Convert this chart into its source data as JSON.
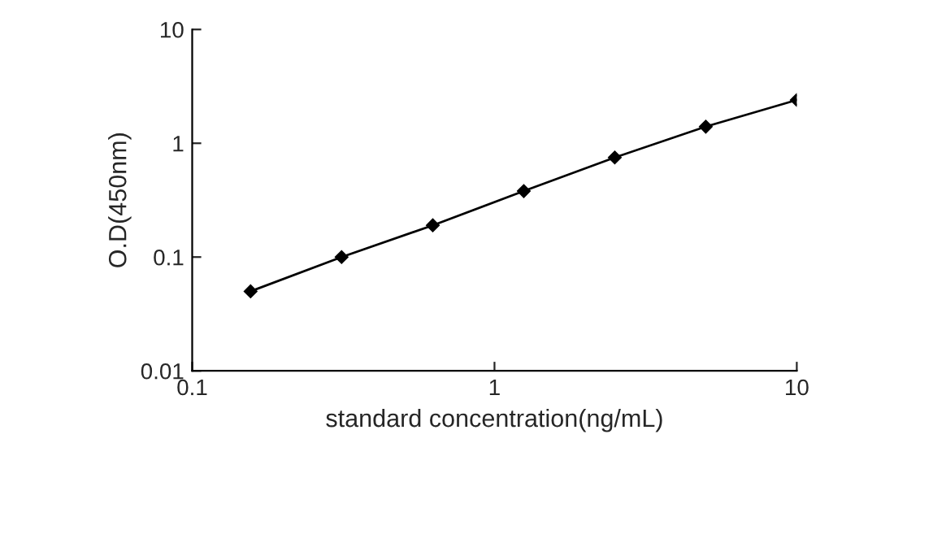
{
  "chart_data": {
    "type": "line",
    "xlabel": "standard concentration(ng/mL)",
    "ylabel": "O.D(450nm)",
    "log": "xy",
    "x": [
      0.156,
      0.312,
      0.625,
      1.25,
      2.5,
      5,
      10
    ],
    "series": [
      {
        "color": "#000000",
        "values": [
          0.05,
          0.1,
          0.19,
          0.38,
          0.75,
          1.4,
          2.4
        ]
      }
    ],
    "xlim": [
      0.1,
      10
    ],
    "ylim": [
      0.01,
      10
    ],
    "xticks": [
      {
        "value": 0.1,
        "label": "0.1"
      },
      {
        "value": 1,
        "label": "1"
      },
      {
        "value": 10,
        "label": "10"
      }
    ],
    "yticks": [
      {
        "value": 0.01,
        "label": "0.01"
      },
      {
        "value": 0.1,
        "label": "0.1"
      },
      {
        "value": 1,
        "label": "1"
      },
      {
        "value": 10,
        "label": "10"
      }
    ],
    "marker": "diamond",
    "line_style": "solid",
    "grid": false,
    "legend": false
  }
}
